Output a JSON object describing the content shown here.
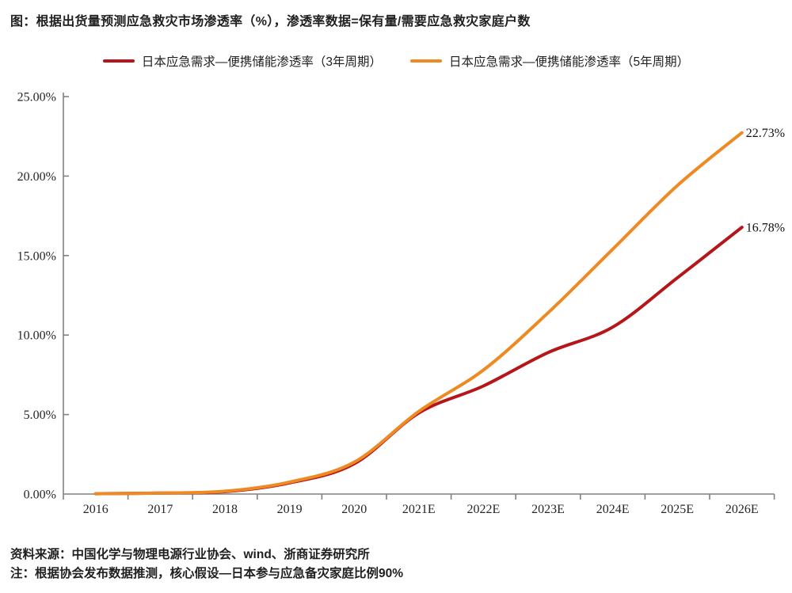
{
  "chart_data": {
    "type": "line",
    "title": "图：根据出货量预测应急救灾市场渗透率（%），渗透率数据=保有量/需要应急救灾家庭户数",
    "categories": [
      "2016",
      "2017",
      "2018",
      "2019",
      "2020",
      "2021E",
      "2022E",
      "2023E",
      "2024E",
      "2025E",
      "2026E"
    ],
    "series": [
      {
        "name": "日本应急需求—便携储能渗透率（3年周期）",
        "color": "#b6161a",
        "values": [
          0.02,
          0.06,
          0.15,
          0.7,
          1.9,
          5.1,
          6.8,
          8.9,
          10.5,
          13.6,
          16.78
        ],
        "end_label": "16.78%"
      },
      {
        "name": "日本应急需求—便携储能渗透率（5年周期）",
        "color": "#ed8a24",
        "values": [
          0.02,
          0.06,
          0.18,
          0.75,
          2.0,
          5.2,
          7.8,
          11.4,
          15.4,
          19.4,
          22.73
        ],
        "end_label": "22.73%"
      }
    ],
    "xlabel": "",
    "ylabel": "",
    "ylim": [
      0,
      25
    ],
    "ytick_step": 5,
    "ytick_labels": [
      "0.00%",
      "5.00%",
      "10.00%",
      "15.00%",
      "20.00%",
      "25.00%"
    ],
    "grid": false,
    "legend_position": "top",
    "axis_color": "#808080",
    "label_color": "#262626"
  },
  "footer": {
    "source": "资料来源：中国化学与物理电源行业协会、wind、浙商证券研究所",
    "note": "注：根据协会发布数据推测，核心假设—日本参与应急备灾家庭比例90%"
  }
}
